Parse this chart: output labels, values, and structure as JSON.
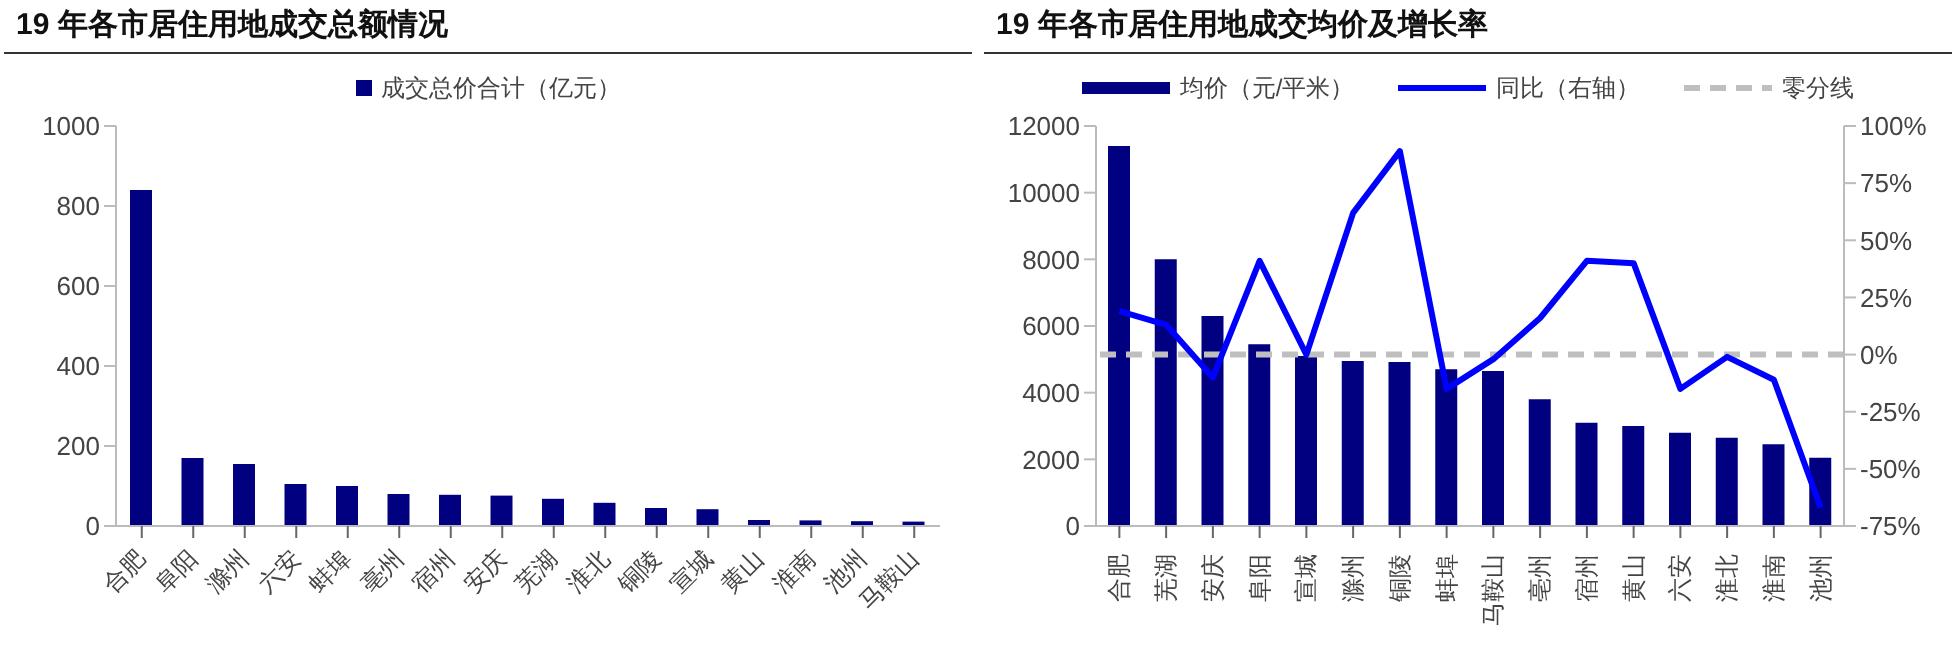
{
  "chart_data": [
    {
      "type": "bar",
      "title": "19 年各市居住用地成交总额情况",
      "categories": [
        "合肥",
        "阜阳",
        "滁州",
        "六安",
        "蚌埠",
        "亳州",
        "宿州",
        "安庆",
        "芜湖",
        "淮北",
        "铜陵",
        "宣城",
        "黄山",
        "淮南",
        "池州",
        "马鞍山"
      ],
      "series": [
        {
          "name": "成交总价合计（亿元）",
          "color": "#000080",
          "values": [
            840,
            170,
            155,
            105,
            100,
            80,
            78,
            76,
            68,
            58,
            45,
            42,
            15,
            14,
            12,
            11
          ]
        }
      ],
      "ylim": [
        0,
        1000
      ],
      "yticks": [
        0,
        200,
        400,
        600,
        800,
        1000
      ],
      "legend": "top",
      "grid": false
    },
    {
      "type": "bar",
      "title": "19 年各市居住用地成交均价及增长率",
      "categories": [
        "合肥",
        "芜湖",
        "安庆",
        "阜阳",
        "宣城",
        "滁州",
        "铜陵",
        "蚌埠",
        "马鞍山",
        "亳州",
        "宿州",
        "黄山",
        "六安",
        "淮北",
        "淮南",
        "池州"
      ],
      "series": [
        {
          "name": "均价（元/平米）",
          "color": "#000080",
          "values": [
            11400,
            8000,
            6300,
            5450,
            5100,
            4950,
            4920,
            4700,
            4650,
            3800,
            3100,
            3000,
            2800,
            2650,
            2450,
            2050
          ]
        },
        {
          "name": "同比（右轴）",
          "type": "line",
          "axis": "y2",
          "color": "#0000ff",
          "values": [
            19,
            13,
            -10,
            41,
            0,
            62,
            89,
            -15,
            -2,
            16,
            41,
            40,
            -15,
            -1,
            -11,
            -67
          ]
        }
      ],
      "ylim": [
        0,
        12000
      ],
      "yticks": [
        0,
        2000,
        4000,
        6000,
        8000,
        10000,
        12000
      ],
      "y2lim": [
        -75,
        100
      ],
      "y2ticks": [
        {
          "value": -75,
          "label": "-75%"
        },
        {
          "value": -50,
          "label": "-50%"
        },
        {
          "value": -25,
          "label": "-25%"
        },
        {
          "value": 0,
          "label": "0%"
        },
        {
          "value": 25,
          "label": "25%"
        },
        {
          "value": 50,
          "label": "50%"
        },
        {
          "value": 75,
          "label": "75%"
        },
        {
          "value": 100,
          "label": "100%"
        }
      ],
      "ref_lines": [
        {
          "axis": "y2",
          "value": 0,
          "label": "零分线",
          "color": "#bfbfbf",
          "line_style": "dashed"
        }
      ],
      "legend": "top",
      "grid": false
    }
  ]
}
